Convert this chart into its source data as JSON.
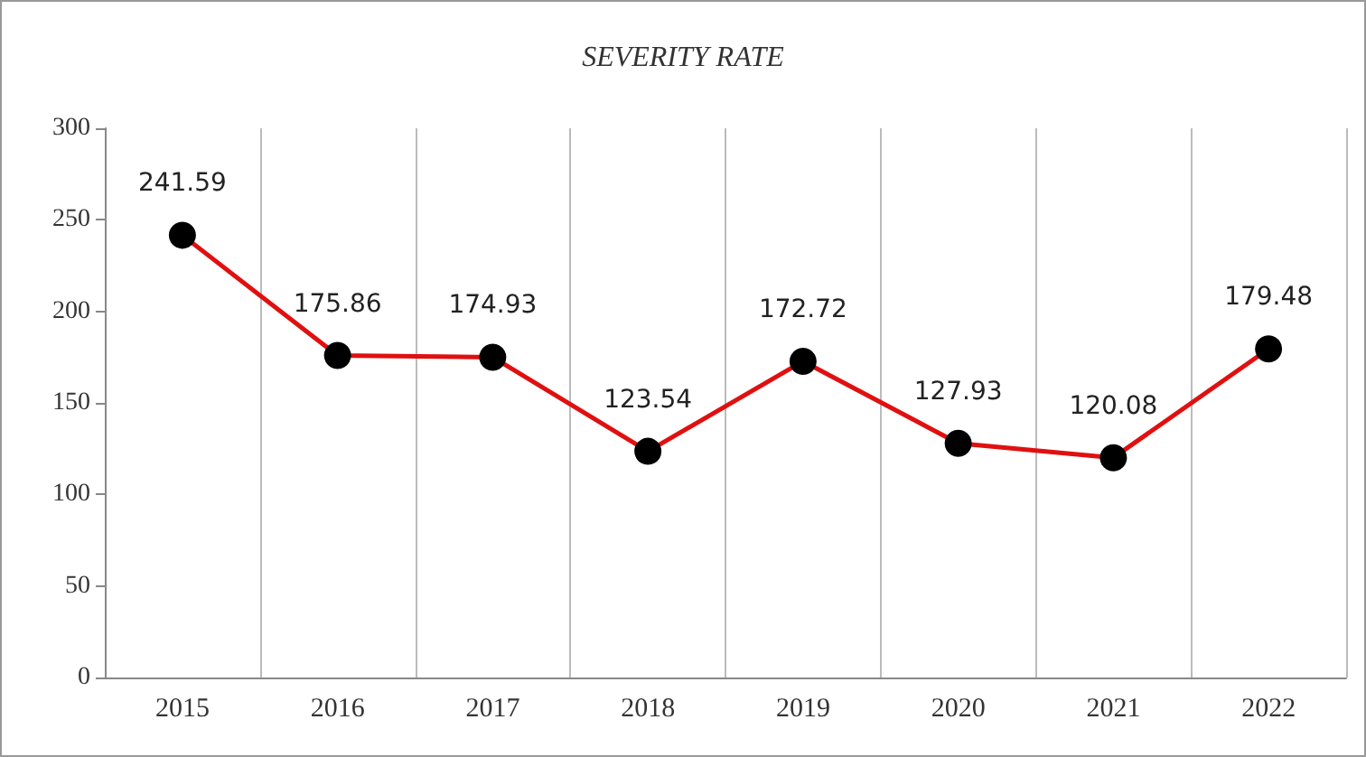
{
  "chart_data": {
    "type": "line",
    "title": "SEVERITY RATE",
    "categories": [
      "2015",
      "2016",
      "2017",
      "2018",
      "2019",
      "2020",
      "2021",
      "2022"
    ],
    "series": [
      {
        "color": "#e01010",
        "values": [
          241.59,
          175.86,
          174.93,
          123.54,
          172.72,
          127.93,
          120.08,
          179.48
        ]
      }
    ],
    "ylim": [
      0,
      300
    ],
    "yticks": [
      0,
      50,
      100,
      150,
      200,
      250,
      300
    ],
    "data_labels": true,
    "grid": "x",
    "marker": "circle",
    "line_style": "solid"
  }
}
